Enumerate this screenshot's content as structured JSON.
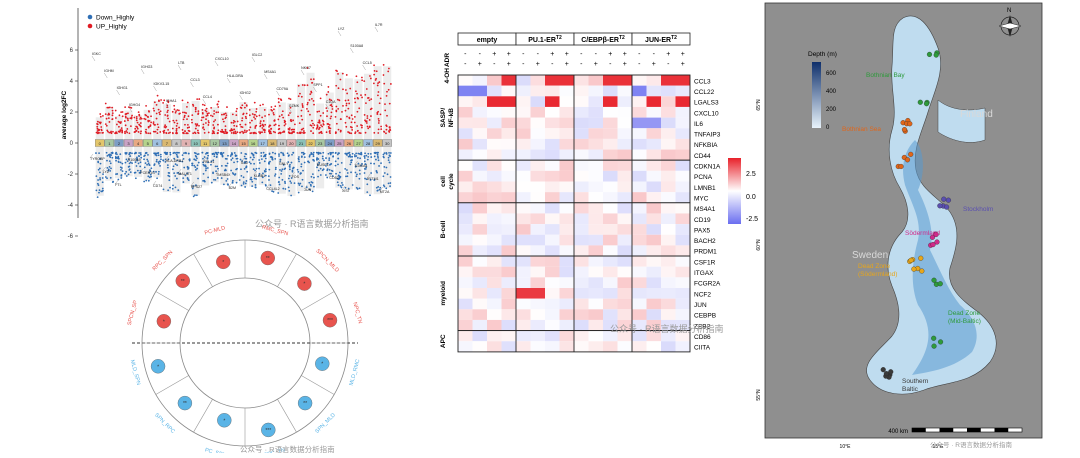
{
  "watermark": "公众号 · R语言数据分析指南",
  "volcano": {
    "ylabel": "average log2FC",
    "yticks": [
      -6,
      -4,
      -2,
      0,
      2,
      4,
      6
    ],
    "legend": [
      {
        "label": "Down_Highly",
        "color": "#2f6fb5"
      },
      {
        "label": "UP_Highly",
        "color": "#e01b24"
      }
    ],
    "cluster_count": 31,
    "cluster_colors": [
      "#e3c66b",
      "#a7c7a1",
      "#7d9ec5",
      "#c9a2c5",
      "#e8a982",
      "#b5d38c",
      "#9fc0e0",
      "#d9b871",
      "#c5c5c5",
      "#e0b2b2",
      "#8bc1b7"
    ],
    "up_labels": [
      "IGKC",
      "IGHM",
      "IGHG1",
      "IGHG4",
      "IGHG3",
      "IGKV3-15",
      "IGHA1",
      "LTB",
      "CCL3",
      "CCL4",
      "CXCL10",
      "HLA-DRA",
      "IGHG2",
      "IGLC2",
      "MS4A1",
      "CD79A",
      "GZMK",
      "NKG7",
      "SPP1",
      "C1QA",
      "LYZ",
      "S100A8",
      "CCL5",
      "IL7R"
    ],
    "down_labels": [
      "TYROBP",
      "LYZ",
      "FTL",
      "S100A9",
      "FCER1G",
      "CD74",
      "HLA-DRB1",
      "MALAT1",
      "RPS27",
      "RPL21",
      "TMSB4X",
      "B2M",
      "IL32",
      "KLRB1",
      "CCL4L2",
      "GNLY",
      "FOS",
      "JUN",
      "DUSP1",
      "CD52",
      "XIST",
      "S100A4",
      "IFITM1",
      "MT2A"
    ]
  },
  "radial": {
    "up_count": 6,
    "down_count": 6,
    "segment_labels": [
      "SPCN_SP",
      "RPC_SPN",
      "PC-MLD",
      "RMC_SPN",
      "SPCN_MLD",
      "NPC_TN",
      "MLD_RMC",
      "SPN_MLD",
      "RPC_TN",
      "PC_SPN",
      "SPN_RPC",
      "MLD_SPN"
    ],
    "up_color": "#e8544e",
    "down_color": "#5ab4e6",
    "point_labels": [
      "*",
      "**",
      "*",
      "**",
      "*",
      "***",
      "*",
      "**",
      "***",
      "*",
      "**",
      "*"
    ]
  },
  "heatmap": {
    "groups": [
      "empty",
      "PU.1-ER",
      "C/EBPβ-ER",
      "JUN-ER"
    ],
    "group_sup": "T2",
    "treat_labels": [
      "ADR",
      "4-OH"
    ],
    "adr": [
      "-",
      "-",
      "+",
      "+",
      "-",
      "-",
      "+",
      "+",
      "-",
      "-",
      "+",
      "+",
      "-",
      "-",
      "+",
      "+"
    ],
    "oh": [
      "-",
      "+",
      "-",
      "+",
      "-",
      "+",
      "-",
      "+",
      "-",
      "+",
      "-",
      "+",
      "-",
      "+",
      "-",
      "+"
    ],
    "row_groups": [
      {
        "label": "SASP/\nNF-kB",
        "rows": [
          "CCL3",
          "CCL22",
          "LGALS3",
          "CXCL10",
          "IL6",
          "TNFAIP3",
          "NFKBIA",
          "CD44"
        ]
      },
      {
        "label": "cell\ncycle",
        "rows": [
          "CDKN1A",
          "PCNA",
          "LMNB1",
          "MYC"
        ]
      },
      {
        "label": "B-cell",
        "rows": [
          "MS4A1",
          "CD19",
          "PAX5",
          "BACH2",
          "PRDM1"
        ]
      },
      {
        "label": "myeloid",
        "rows": [
          "CSF1R",
          "ITGAX",
          "FCGR2A",
          "NCF2",
          "JUN",
          "CEBPB",
          "ZEB2"
        ]
      },
      {
        "label": "APC",
        "rows": [
          "CD86",
          "CIITA"
        ]
      }
    ],
    "legend_ticks": [
      "2.5",
      "0.0",
      "-2.5"
    ],
    "color_high": "#e8212a",
    "color_mid": "#ffffff",
    "color_low": "#6a6ef0"
  },
  "map": {
    "legend_title": "Depth (m)",
    "legend_ticks": [
      "600",
      "400",
      "200",
      "0"
    ],
    "regions": [
      {
        "name": "Bothnian Bay",
        "color": "#2e9a3b"
      },
      {
        "name": "Bothnian Sea",
        "color": "#e0661a"
      },
      {
        "name": "Stockholm",
        "color": "#5a4fb0"
      },
      {
        "name": "Södermland",
        "color": "#d02a8a"
      },
      {
        "name": "Dead Zone\n(Södermland)",
        "color": "#e8a61a"
      },
      {
        "name": "Dead Zone\n(Mid-Baltic)",
        "color": "#2e9a3b"
      },
      {
        "name": "Southern\nBaltic",
        "color": "#3a3a3a"
      }
    ],
    "countries": [
      "Finland",
      "Sweden"
    ],
    "lat_ticks": [
      "65°N",
      "60°N",
      "55°N"
    ],
    "lon_ticks": [
      "10°E",
      "15°E"
    ],
    "scale_label": "400 km",
    "north_label": "N"
  }
}
